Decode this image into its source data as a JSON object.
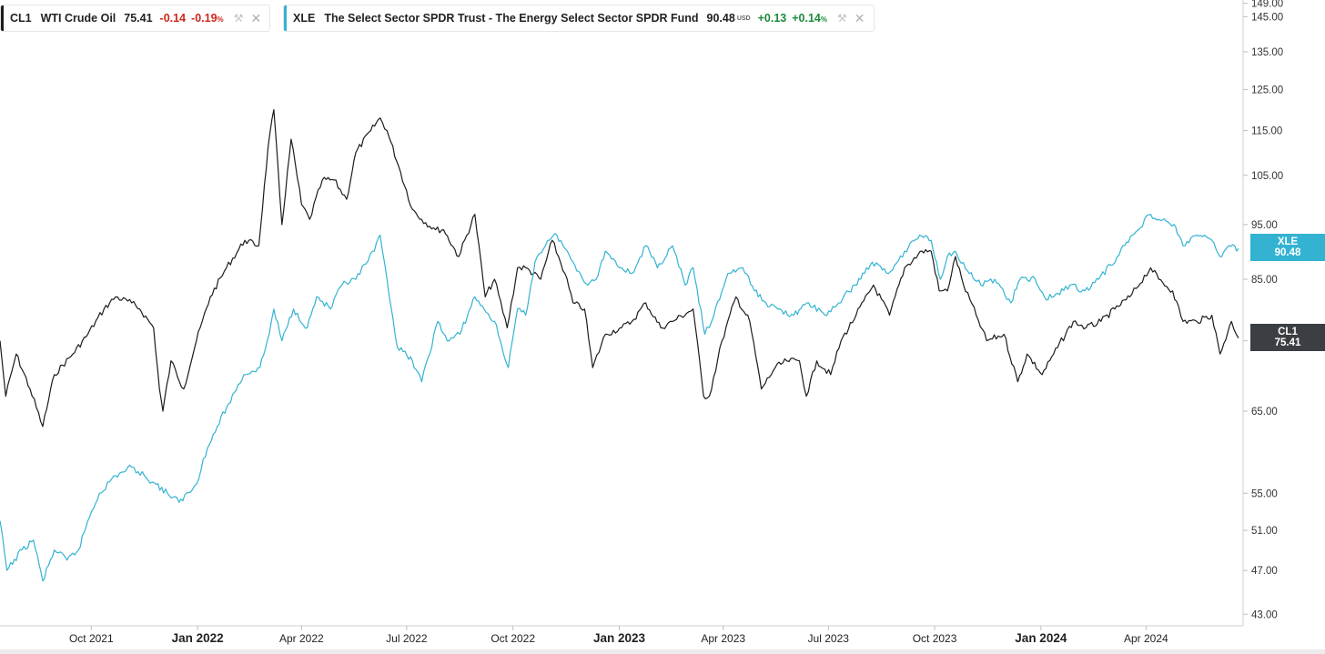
{
  "legend": [
    {
      "symbol": "CL1",
      "name": "WTI Crude Oil",
      "price": "75.41",
      "unit": "",
      "change": "-0.14",
      "change_pct": "-0.19",
      "pct_sign": "%",
      "color": "#1c1c1c",
      "dir": "neg"
    },
    {
      "symbol": "XLE",
      "name": "The Select Sector SPDR Trust - The Energy Select Sector SPDR Fund",
      "price": "90.48",
      "unit": "USD",
      "change": "+0.13",
      "change_pct": "+0.14",
      "pct_sign": "%",
      "color": "#33b3d1",
      "dir": "pos"
    }
  ],
  "price_tags": [
    {
      "symbol": "XLE",
      "value": "90.48",
      "color": "#33b3d1"
    },
    {
      "symbol": "CL1",
      "value": "75.41",
      "color": "#3b3e42"
    }
  ],
  "chart_data": {
    "type": "line",
    "x_range": [
      "2021-07-14",
      "2024-06-24"
    ],
    "yscale": "log",
    "ylim": [
      42,
      150
    ],
    "y_ticks": [
      149,
      145,
      135,
      125,
      115,
      105,
      95,
      85,
      75,
      65,
      55,
      51,
      47,
      43
    ],
    "y_tick_labels": [
      "149.00",
      "145.00",
      "135.00",
      "125.00",
      "115.00",
      "105.00",
      "95.00",
      "85.00",
      "75.00",
      "65.00",
      "55.00",
      "51.00",
      "47.00",
      "43.00"
    ],
    "x_ticks": [
      {
        "date": "2021-10-01",
        "label": "Oct 2021",
        "bold": false
      },
      {
        "date": "2022-01-01",
        "label": "Jan 2022",
        "bold": true
      },
      {
        "date": "2022-04-01",
        "label": "Apr 2022",
        "bold": false
      },
      {
        "date": "2022-07-01",
        "label": "Jul 2022",
        "bold": false
      },
      {
        "date": "2022-10-01",
        "label": "Oct 2022",
        "bold": false
      },
      {
        "date": "2023-01-01",
        "label": "Jan 2023",
        "bold": true
      },
      {
        "date": "2023-04-01",
        "label": "Apr 2023",
        "bold": false
      },
      {
        "date": "2023-07-01",
        "label": "Jul 2023",
        "bold": false
      },
      {
        "date": "2023-10-01",
        "label": "Oct 2023",
        "bold": false
      },
      {
        "date": "2024-01-01",
        "label": "Jan 2024",
        "bold": true
      },
      {
        "date": "2024-04-01",
        "label": "Apr 2024",
        "bold": false
      }
    ],
    "grid": false,
    "series": [
      {
        "name": "CL1",
        "color": "#1c1c1c",
        "points": [
          [
            "2021-07-14",
            75
          ],
          [
            "2021-07-19",
            67
          ],
          [
            "2021-07-28",
            73
          ],
          [
            "2021-08-09",
            68
          ],
          [
            "2021-08-20",
            63
          ],
          [
            "2021-08-30",
            70
          ],
          [
            "2021-09-15",
            73
          ],
          [
            "2021-09-28",
            76
          ],
          [
            "2021-10-12",
            80
          ],
          [
            "2021-10-22",
            82
          ],
          [
            "2021-11-05",
            81
          ],
          [
            "2021-11-12",
            80
          ],
          [
            "2021-11-24",
            77
          ],
          [
            "2021-11-29",
            68
          ],
          [
            "2021-12-02",
            65
          ],
          [
            "2021-12-09",
            72
          ],
          [
            "2021-12-20",
            68
          ],
          [
            "2021-12-31",
            75
          ],
          [
            "2022-01-12",
            82
          ],
          [
            "2022-01-26",
            87
          ],
          [
            "2022-02-11",
            92
          ],
          [
            "2022-02-23",
            91
          ],
          [
            "2022-03-03",
            111
          ],
          [
            "2022-03-08",
            120
          ],
          [
            "2022-03-15",
            95
          ],
          [
            "2022-03-23",
            113
          ],
          [
            "2022-04-01",
            99
          ],
          [
            "2022-04-08",
            96
          ],
          [
            "2022-04-19",
            104
          ],
          [
            "2022-04-29",
            104
          ],
          [
            "2022-05-10",
            100
          ],
          [
            "2022-05-18",
            110
          ],
          [
            "2022-05-31",
            115
          ],
          [
            "2022-06-08",
            118
          ],
          [
            "2022-06-14",
            115
          ],
          [
            "2022-06-24",
            107
          ],
          [
            "2022-07-06",
            98
          ],
          [
            "2022-07-14",
            96
          ],
          [
            "2022-07-26",
            94
          ],
          [
            "2022-08-02",
            94
          ],
          [
            "2022-08-15",
            89
          ],
          [
            "2022-08-29",
            97
          ],
          [
            "2022-09-07",
            82
          ],
          [
            "2022-09-15",
            85
          ],
          [
            "2022-09-26",
            77
          ],
          [
            "2022-10-05",
            87
          ],
          [
            "2022-10-12",
            87
          ],
          [
            "2022-10-25",
            85
          ],
          [
            "2022-11-04",
            92
          ],
          [
            "2022-11-15",
            86
          ],
          [
            "2022-11-22",
            81
          ],
          [
            "2022-12-02",
            80
          ],
          [
            "2022-12-09",
            71
          ],
          [
            "2022-12-20",
            76
          ],
          [
            "2023-01-03",
            77
          ],
          [
            "2023-01-12",
            78
          ],
          [
            "2023-01-24",
            81
          ],
          [
            "2023-02-06",
            77
          ],
          [
            "2023-02-16",
            78
          ],
          [
            "2023-03-06",
            80
          ],
          [
            "2023-03-15",
            67
          ],
          [
            "2023-03-20",
            67
          ],
          [
            "2023-03-31",
            75
          ],
          [
            "2023-04-12",
            82
          ],
          [
            "2023-04-24",
            78
          ],
          [
            "2023-05-04",
            68
          ],
          [
            "2023-05-16",
            71
          ],
          [
            "2023-05-26",
            72
          ],
          [
            "2023-06-06",
            72
          ],
          [
            "2023-06-12",
            67
          ],
          [
            "2023-06-21",
            72
          ],
          [
            "2023-07-03",
            70
          ],
          [
            "2023-07-12",
            75
          ],
          [
            "2023-07-25",
            79
          ],
          [
            "2023-08-09",
            84
          ],
          [
            "2023-08-23",
            79
          ],
          [
            "2023-09-05",
            87
          ],
          [
            "2023-09-20",
            90
          ],
          [
            "2023-09-28",
            90
          ],
          [
            "2023-10-05",
            83
          ],
          [
            "2023-10-12",
            83
          ],
          [
            "2023-10-19",
            89
          ],
          [
            "2023-10-26",
            84
          ],
          [
            "2023-11-06",
            79
          ],
          [
            "2023-11-15",
            75
          ],
          [
            "2023-11-30",
            76
          ],
          [
            "2023-12-12",
            69
          ],
          [
            "2023-12-20",
            73
          ],
          [
            "2024-01-02",
            70
          ],
          [
            "2024-01-12",
            73
          ],
          [
            "2024-01-29",
            78
          ],
          [
            "2024-02-09",
            77
          ],
          [
            "2024-02-22",
            78
          ],
          [
            "2024-03-05",
            80
          ],
          [
            "2024-03-18",
            82
          ],
          [
            "2024-04-05",
            87
          ],
          [
            "2024-04-12",
            85
          ],
          [
            "2024-04-24",
            83
          ],
          [
            "2024-05-03",
            78
          ],
          [
            "2024-05-15",
            78
          ],
          [
            "2024-05-28",
            79
          ],
          [
            "2024-06-04",
            73
          ],
          [
            "2024-06-14",
            78
          ],
          [
            "2024-06-20",
            75.41
          ]
        ]
      },
      {
        "name": "XLE",
        "color": "#33b3d1",
        "points": [
          [
            "2021-07-14",
            52
          ],
          [
            "2021-07-20",
            47
          ],
          [
            "2021-08-02",
            49
          ],
          [
            "2021-08-12",
            50
          ],
          [
            "2021-08-20",
            46
          ],
          [
            "2021-08-30",
            49
          ],
          [
            "2021-09-10",
            48
          ],
          [
            "2021-09-20",
            49
          ],
          [
            "2021-09-28",
            52
          ],
          [
            "2021-10-08",
            55
          ],
          [
            "2021-10-22",
            57
          ],
          [
            "2021-11-05",
            58
          ],
          [
            "2021-11-16",
            57
          ],
          [
            "2021-11-26",
            56
          ],
          [
            "2021-12-06",
            55
          ],
          [
            "2021-12-16",
            54
          ],
          [
            "2021-12-31",
            56
          ],
          [
            "2022-01-06",
            59
          ],
          [
            "2022-01-18",
            63
          ],
          [
            "2022-01-28",
            66
          ],
          [
            "2022-02-10",
            70
          ],
          [
            "2022-02-24",
            71
          ],
          [
            "2022-03-04",
            76
          ],
          [
            "2022-03-08",
            80
          ],
          [
            "2022-03-15",
            75
          ],
          [
            "2022-03-25",
            80
          ],
          [
            "2022-04-06",
            77
          ],
          [
            "2022-04-14",
            82
          ],
          [
            "2022-04-26",
            80
          ],
          [
            "2022-05-06",
            84
          ],
          [
            "2022-05-18",
            85
          ],
          [
            "2022-06-03",
            90
          ],
          [
            "2022-06-08",
            93
          ],
          [
            "2022-06-14",
            85
          ],
          [
            "2022-06-23",
            74
          ],
          [
            "2022-07-06",
            72
          ],
          [
            "2022-07-14",
            69
          ],
          [
            "2022-07-28",
            78
          ],
          [
            "2022-08-05",
            75
          ],
          [
            "2022-08-16",
            76
          ],
          [
            "2022-08-29",
            82
          ],
          [
            "2022-09-06",
            80
          ],
          [
            "2022-09-15",
            78
          ],
          [
            "2022-09-27",
            71
          ],
          [
            "2022-10-05",
            80
          ],
          [
            "2022-10-12",
            79
          ],
          [
            "2022-10-20",
            88
          ],
          [
            "2022-10-31",
            92
          ],
          [
            "2022-11-08",
            93
          ],
          [
            "2022-11-22",
            88
          ],
          [
            "2022-12-05",
            84
          ],
          [
            "2022-12-12",
            85
          ],
          [
            "2022-12-20",
            90
          ],
          [
            "2023-01-03",
            87
          ],
          [
            "2023-01-12",
            86
          ],
          [
            "2023-01-24",
            91
          ],
          [
            "2023-02-03",
            87
          ],
          [
            "2023-02-16",
            91
          ],
          [
            "2023-02-27",
            84
          ],
          [
            "2023-03-06",
            87
          ],
          [
            "2023-03-16",
            76
          ],
          [
            "2023-03-22",
            78
          ],
          [
            "2023-04-05",
            86
          ],
          [
            "2023-04-18",
            87
          ],
          [
            "2023-04-28",
            83
          ],
          [
            "2023-05-08",
            81
          ],
          [
            "2023-05-18",
            80
          ],
          [
            "2023-06-01",
            79
          ],
          [
            "2023-06-14",
            81
          ],
          [
            "2023-06-28",
            79
          ],
          [
            "2023-07-10",
            81
          ],
          [
            "2023-07-24",
            84
          ],
          [
            "2023-08-08",
            88
          ],
          [
            "2023-08-22",
            86
          ],
          [
            "2023-09-05",
            90
          ],
          [
            "2023-09-18",
            93
          ],
          [
            "2023-09-28",
            92
          ],
          [
            "2023-10-06",
            85
          ],
          [
            "2023-10-12",
            89
          ],
          [
            "2023-10-19",
            90
          ],
          [
            "2023-10-31",
            86
          ],
          [
            "2023-11-10",
            84
          ],
          [
            "2023-11-22",
            85
          ],
          [
            "2023-12-06",
            81
          ],
          [
            "2023-12-14",
            85
          ],
          [
            "2023-12-27",
            85
          ],
          [
            "2024-01-04",
            82
          ],
          [
            "2024-01-12",
            82
          ],
          [
            "2024-01-26",
            84
          ],
          [
            "2024-02-08",
            83
          ],
          [
            "2024-02-20",
            85
          ],
          [
            "2024-03-07",
            89
          ],
          [
            "2024-03-20",
            93
          ],
          [
            "2024-04-05",
            97
          ],
          [
            "2024-04-12",
            96
          ],
          [
            "2024-04-25",
            95
          ],
          [
            "2024-05-03",
            91
          ],
          [
            "2024-05-15",
            93
          ],
          [
            "2024-05-28",
            92
          ],
          [
            "2024-06-04",
            89
          ],
          [
            "2024-06-12",
            91
          ],
          [
            "2024-06-20",
            90.48
          ]
        ]
      }
    ]
  }
}
